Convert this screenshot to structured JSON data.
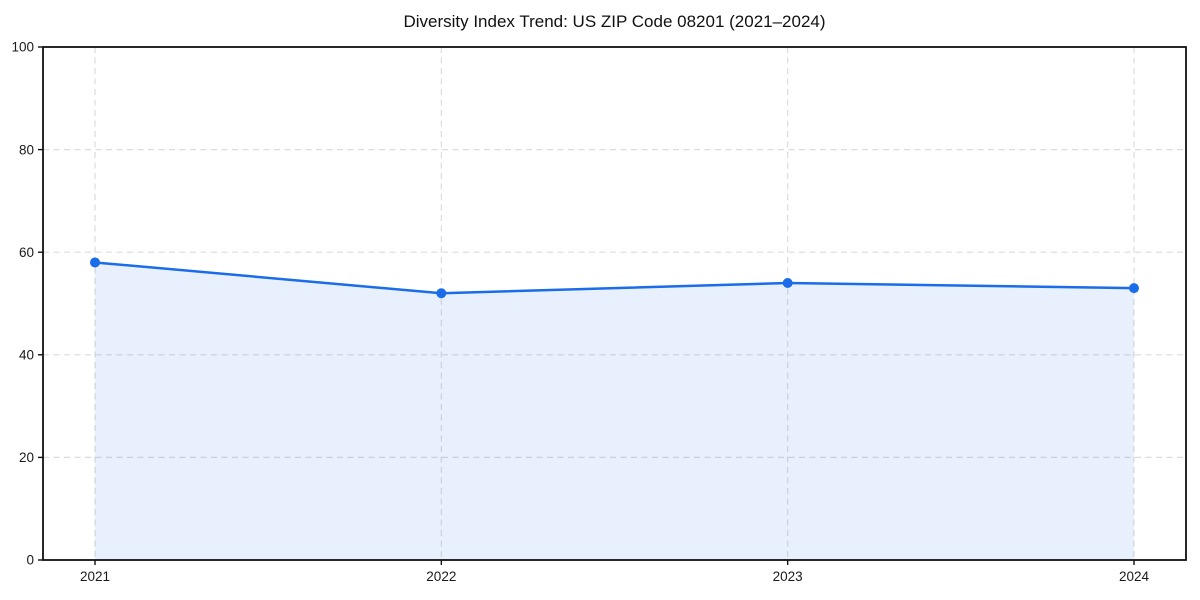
{
  "chart_data": {
    "type": "area",
    "title": "Diversity Index Trend: US ZIP Code 08201 (2021–2024)",
    "categories": [
      "2021",
      "2022",
      "2023",
      "2024"
    ],
    "series": [
      {
        "name": "Diversity Index",
        "values": [
          58,
          52,
          54,
          53
        ]
      }
    ],
    "xlabel": "",
    "ylabel": "",
    "ylim": [
      0,
      100
    ],
    "yticks": [
      0,
      20,
      40,
      60,
      80,
      100
    ],
    "grid": true,
    "grid_style": "dashed",
    "legend": false,
    "marker": "circle",
    "colors": {
      "line": "#1a6ce8",
      "fill": "#1a6ce8",
      "fill_opacity": 0.1,
      "grid": "#dcdcdc",
      "axis": "#111111",
      "text": "#1a1a1a",
      "background": "#ffffff"
    }
  }
}
